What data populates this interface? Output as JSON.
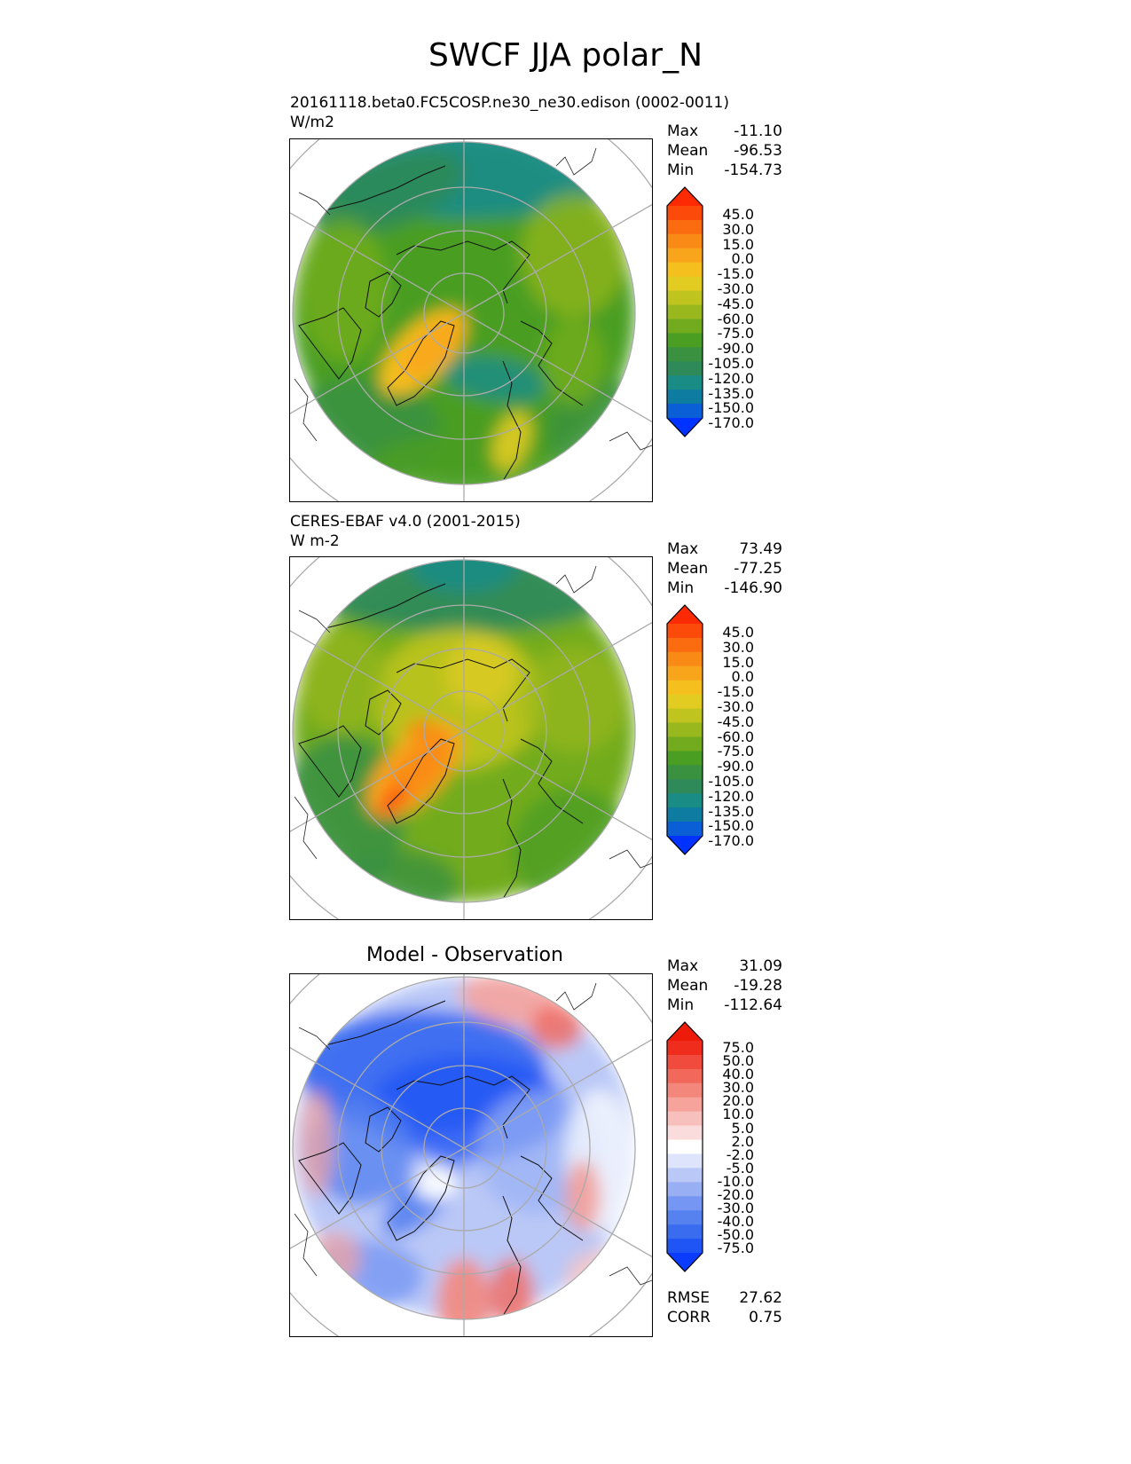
{
  "title": "SWCF JJA polar_N",
  "panels": [
    {
      "id": "model",
      "subtitle_line1": "20161118.beta0.FC5COSP.ne30_ne30.edison (0002-0011)",
      "subtitle_line2": "W/m2",
      "stats": {
        "max_label": "Max",
        "max": "-11.10",
        "mean_label": "Mean",
        "mean": "-96.53",
        "min_label": "Min",
        "min": "-154.73"
      },
      "colorbar_labels": [
        "45.0",
        "30.0",
        "15.0",
        "0.0",
        "-15.0",
        "-30.0",
        "-45.0",
        "-60.0",
        "-75.0",
        "-90.0",
        "-105.0",
        "-120.0",
        "-135.0",
        "-150.0",
        "-170.0"
      ]
    },
    {
      "id": "observation",
      "subtitle_line1": "CERES-EBAF v4.0 (2001-2015)",
      "subtitle_line2": "W m-2",
      "stats": {
        "max_label": "Max",
        "max": "73.49",
        "mean_label": "Mean",
        "mean": "-77.25",
        "min_label": "Min",
        "min": "-146.90"
      },
      "colorbar_labels": [
        "45.0",
        "30.0",
        "15.0",
        "0.0",
        "-15.0",
        "-30.0",
        "-45.0",
        "-60.0",
        "-75.0",
        "-90.0",
        "-105.0",
        "-120.0",
        "-135.0",
        "-150.0",
        "-170.0"
      ]
    },
    {
      "id": "difference",
      "center_title": "Model - Observation",
      "stats": {
        "max_label": "Max",
        "max": "31.09",
        "mean_label": "Mean",
        "mean": "-19.28",
        "min_label": "Min",
        "min": "-112.64"
      },
      "colorbar_labels": [
        "75.0",
        "50.0",
        "40.0",
        "30.0",
        "20.0",
        "10.0",
        "5.0",
        "2.0",
        "-2.0",
        "-5.0",
        "-10.0",
        "-20.0",
        "-30.0",
        "-40.0",
        "-50.0",
        "-75.0"
      ],
      "metrics": {
        "rmse_label": "RMSE",
        "rmse": "27.62",
        "corr_label": "CORR",
        "corr": "0.75"
      }
    }
  ],
  "colors": {
    "abs_scale": [
      "#0033ff",
      "#0a5fd6",
      "#0e7ca0",
      "#1a8c86",
      "#2e8a58",
      "#3a9140",
      "#4a9e22",
      "#72ac1e",
      "#98b81e",
      "#c0c41e",
      "#e3cc22",
      "#f5bf1e",
      "#f9a51c",
      "#fa8a16",
      "#fb6c10",
      "#fc4a0a",
      "#fd2a04"
    ],
    "diff_scale": [
      "#0a3cff",
      "#1f55f5",
      "#3a6cf0",
      "#5682f0",
      "#7596f2",
      "#98aff4",
      "#bac8f7",
      "#dde4fb",
      "#ffffff",
      "#fbdcdc",
      "#f8c0bc",
      "#f6a39c",
      "#f4877c",
      "#f2695c",
      "#f04b3c",
      "#f02d1c",
      "#ee1a0a"
    ]
  }
}
